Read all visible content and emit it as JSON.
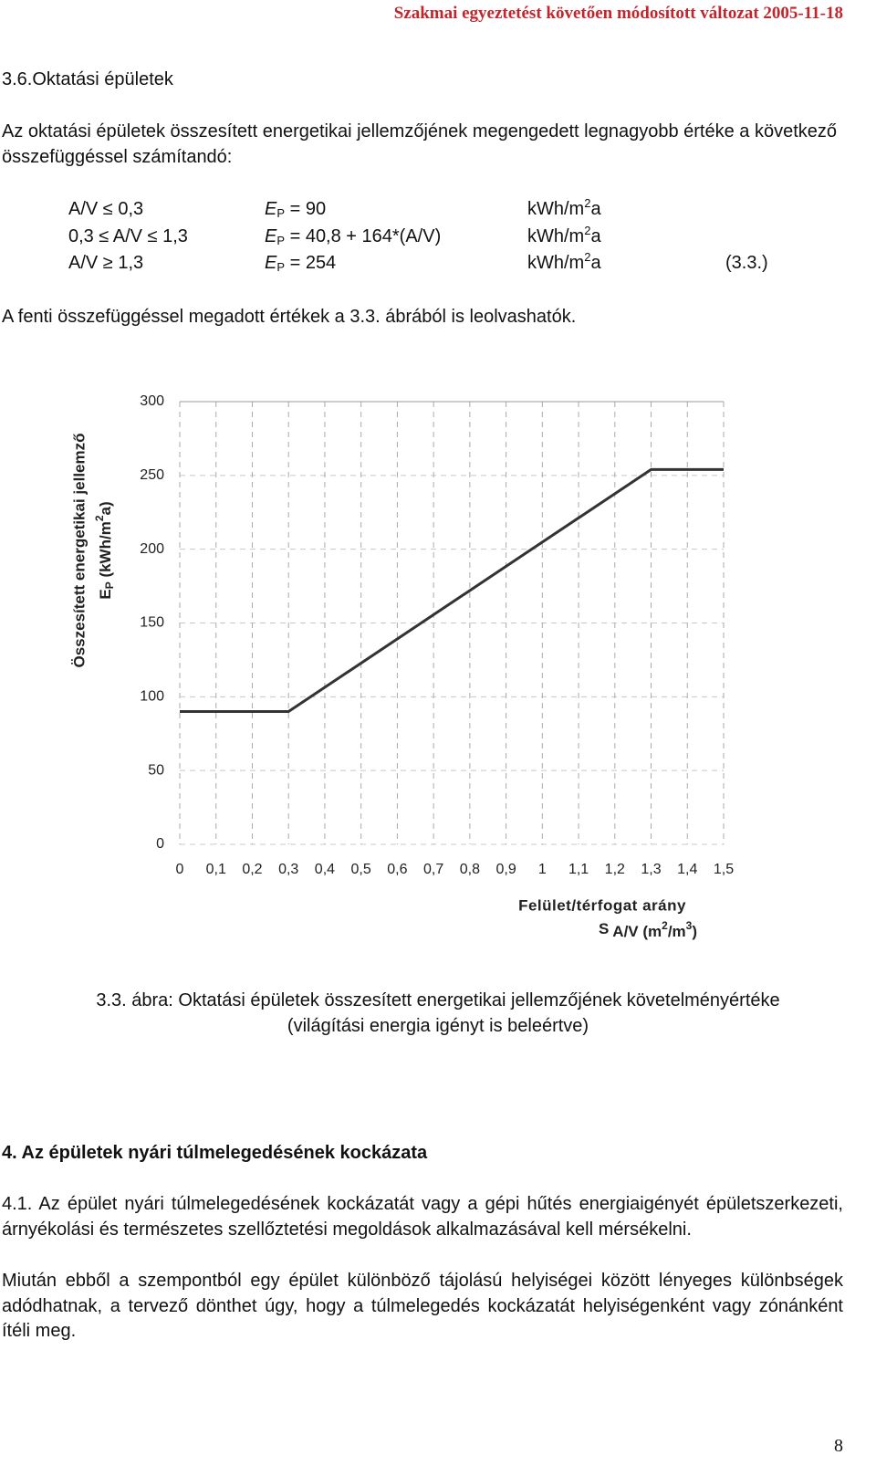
{
  "header": {
    "note": "Szakmai egyeztetést követően módosított változat 2005-11-18",
    "page_number": "8"
  },
  "section_title": "3.6.Oktatási épületek",
  "intro": "Az oktatási épületek összesített energetikai jellemzőjének megengedett legnagyobb értéke a következő összefüggéssel számítandó:",
  "formulas": [
    {
      "condition": "A/V ≤ 0,3",
      "symbol": "E",
      "subscript": "P",
      "expression": "= 90",
      "unit": "kWh/m",
      "unit_exponent": "2",
      "unit_tail": "a"
    },
    {
      "condition": "0,3 ≤ A/V ≤ 1,3",
      "symbol": "E",
      "subscript": "P",
      "expression": "= 40,8 + 164*(A/V)",
      "unit": "kWh/m",
      "unit_exponent": "2",
      "unit_tail": "a"
    },
    {
      "condition": "A/V ≥ 1,3",
      "symbol": "E",
      "subscript": "P",
      "expression": "= 254",
      "unit": "kWh/m",
      "unit_exponent": "2",
      "unit_tail": "a",
      "equation_number": "(3.3.)"
    }
  ],
  "reference": "A fenti összefüggéssel megadott értékek a 3.3. ábrából is leolvashatók.",
  "chart_data": {
    "type": "line",
    "y_label": [
      "Összesített energetikai jellemző",
      {
        "symbol": "E",
        "subscript": "P",
        "unit": " (kWh/m",
        "unit_exponent": "2",
        "unit_tail": "a)"
      }
    ],
    "x_label": [
      "Felület/térfogat arány",
      {
        "symbol": "S",
        "unit": "A/V (m",
        "exponent1": "2",
        "middle": "/m",
        "exponent2": "3",
        "tail": ")"
      }
    ],
    "x": [
      0,
      0.3,
      1.3,
      1.5
    ],
    "values": [
      90,
      90,
      254,
      254
    ],
    "color": "#333333",
    "xlim": [
      0,
      1.5
    ],
    "ylim": [
      0,
      300
    ],
    "xticks": [
      0,
      {
        "value": 0.1,
        "label": "0,1"
      },
      {
        "value": 0.2,
        "label": "0,2"
      },
      {
        "value": 0.3,
        "label": "0,3"
      },
      {
        "value": 0.4,
        "label": "0,4"
      },
      {
        "value": 0.5,
        "label": "0,5"
      },
      {
        "value": 0.6,
        "label": "0,6"
      },
      {
        "value": 0.7,
        "label": "0,7"
      },
      {
        "value": 0.8,
        "label": "0,8"
      },
      {
        "value": 0.9,
        "label": "0,9"
      },
      1,
      {
        "value": 1.1,
        "label": "1,1"
      },
      {
        "value": 1.2,
        "label": "1,2"
      },
      {
        "value": 1.3,
        "label": "1,3"
      },
      {
        "value": 1.4,
        "label": "1,4"
      },
      {
        "value": 1.5,
        "label": "1,5"
      }
    ],
    "yticks": [
      0,
      50,
      100,
      150,
      200,
      250,
      300
    ],
    "grid": true
  },
  "caption": [
    "3.3. ábra: Oktatási épületek összesített energetikai jellemzőjének követelményértéke",
    "(világítási energia igényt is beleértve)"
  ],
  "section4": {
    "title": "4. Az épületek nyári túlmelegedésének kockázata",
    "paragraphs": [
      "4.1. Az épület nyári túlmelegedésének kockázatát vagy a gépi hűtés energiaigényét épületszerkezeti, árnyékolási és természetes szellőztetési megoldások alkalmazásával kell mérsékelni.",
      "Miután ebből a szempontból egy épület különböző tájolású helyiségei között lényeges különbségek adódhatnak, a tervező dönthet úgy, hogy a túlmelegedés kockázatát helyiségenként vagy zónánként ítéli meg."
    ]
  }
}
